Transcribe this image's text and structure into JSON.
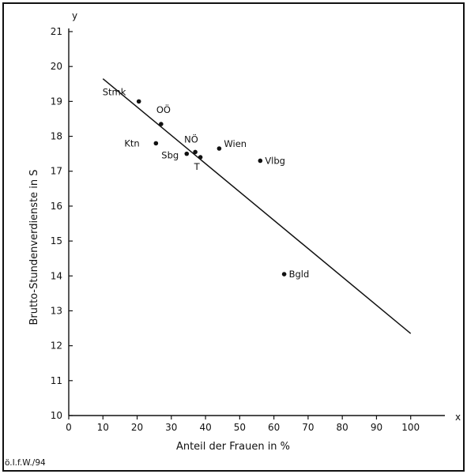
{
  "chart_data": {
    "type": "scatter",
    "xlabel": "Anteil der Frauen in %",
    "ylabel": "Brutto-Stundenverdienste in S",
    "x_axis_letter": "x",
    "y_axis_letter": "y",
    "xlim": [
      0,
      110
    ],
    "ylim": [
      10,
      21
    ],
    "x_ticks": [
      0,
      10,
      20,
      30,
      40,
      50,
      60,
      70,
      80,
      90,
      100
    ],
    "y_ticks": [
      10,
      11,
      12,
      13,
      14,
      15,
      16,
      17,
      18,
      19,
      20,
      21
    ],
    "grid": false,
    "points": [
      {
        "label": "Stmk",
        "x": 20.5,
        "y": 19.0
      },
      {
        "label": "OÖ",
        "x": 27,
        "y": 18.35
      },
      {
        "label": "Ktn",
        "x": 25.5,
        "y": 17.8
      },
      {
        "label": "NÖ",
        "x": 37,
        "y": 17.55
      },
      {
        "label": "Sbg",
        "x": 34.5,
        "y": 17.5
      },
      {
        "label": "T",
        "x": 38.5,
        "y": 17.4
      },
      {
        "label": "Wien",
        "x": 44,
        "y": 17.65
      },
      {
        "label": "Vlbg",
        "x": 56,
        "y": 17.3
      },
      {
        "label": "Bgld",
        "x": 63,
        "y": 14.05
      }
    ],
    "regression_line": {
      "x": [
        10,
        100
      ],
      "y": [
        19.65,
        12.35
      ]
    }
  },
  "footer": {
    "source": "ö.I.f.W./94"
  }
}
